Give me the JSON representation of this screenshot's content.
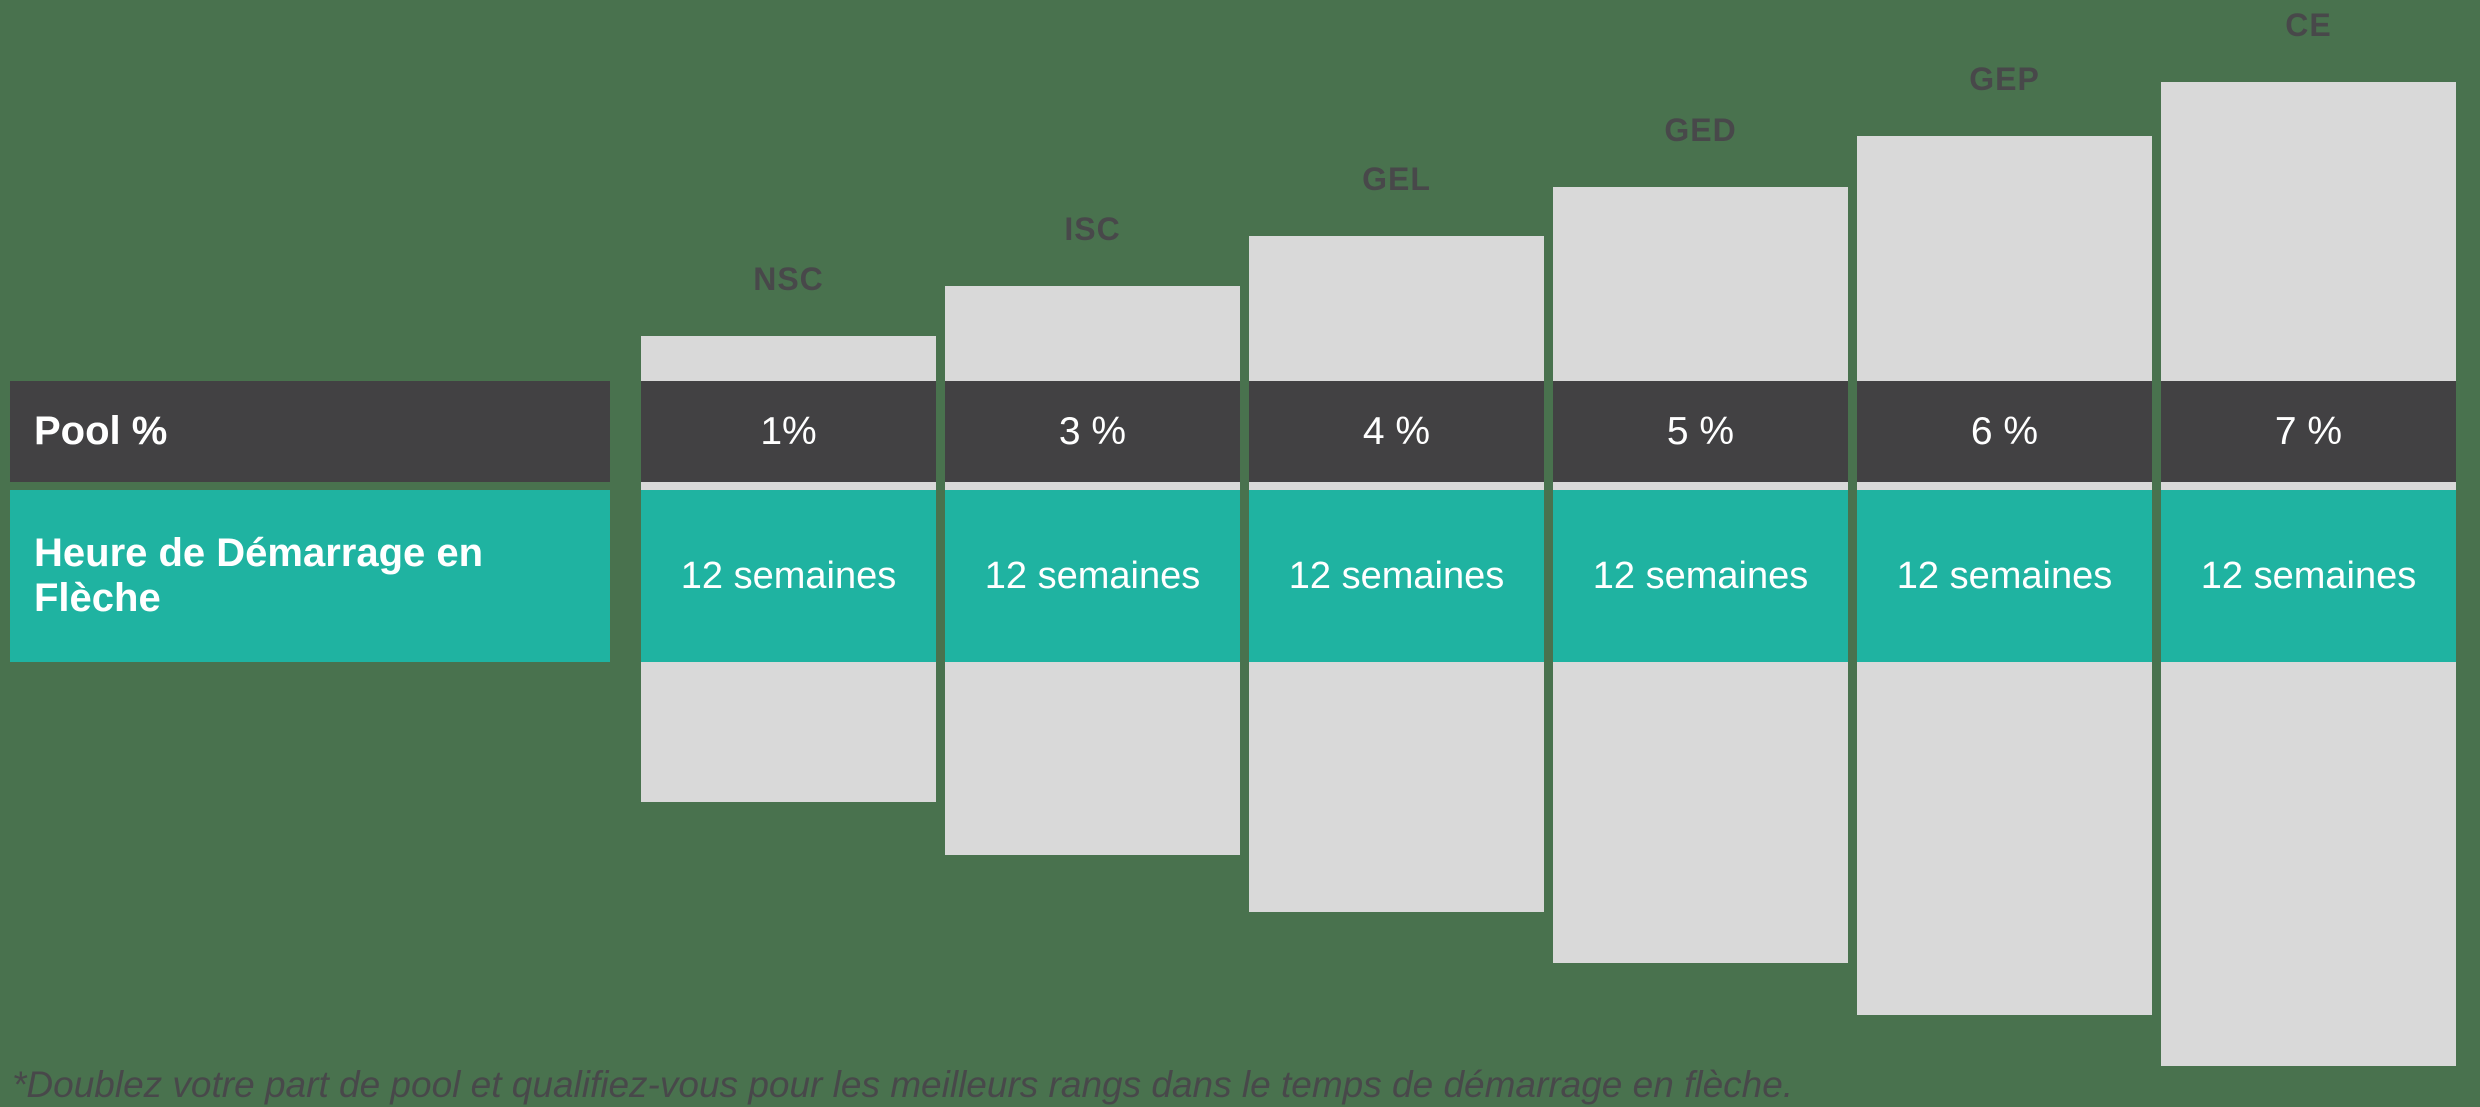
{
  "chart_data": {
    "type": "table",
    "categories": [
      "NSC",
      "ISC",
      "GEL",
      "GED",
      "GEP",
      "CE"
    ],
    "rows": [
      {
        "label": "Pool %",
        "values": [
          "1%",
          "3 %",
          "4 %",
          "5 %",
          "6 %",
          "7 %"
        ]
      },
      {
        "label": "Heure de Démarrage en Flèche",
        "values": [
          "12 semaines",
          "12 semaines",
          "12 semaines",
          "12 semaines",
          "12 semaines",
          "12 semaines"
        ]
      }
    ],
    "footnote": "*Doublez votre part de pool et qualifiez-vous pour les meilleurs rangs dans le temps de démarrage en flèche.",
    "layout_hint": "stair-step gray bars ascending left to right, dark and teal row bands crossing all columns, legend-less, no axes"
  },
  "row_headers": {
    "pool": "Pool %",
    "time": "Heure de Démarrage en Flèche"
  },
  "columns": [
    {
      "rank": "NSC",
      "pool": "1%",
      "time": "12 semaines"
    },
    {
      "rank": "ISC",
      "pool": "3 %",
      "time": "12 semaines"
    },
    {
      "rank": "GEL",
      "pool": "4 %",
      "time": "12 semaines"
    },
    {
      "rank": "GED",
      "pool": "5 %",
      "time": "12 semaines"
    },
    {
      "rank": "GEP",
      "pool": "6 %",
      "time": "12 semaines"
    },
    {
      "rank": "CE",
      "pool": "7 %",
      "time": "12 semaines"
    }
  ],
  "footnote": "*Doublez votre part de pool et qualifiez-vous pour les meilleurs rangs dans le temps de démarrage en flèche.",
  "colors": {
    "background": "#49724E",
    "bar": "#D9D9D9",
    "pool_row": "#424143",
    "time_row": "#1FB3A1",
    "rank_label": "#48484A",
    "footnote_text": "#48484A",
    "band_text": "#FFFFFF"
  }
}
